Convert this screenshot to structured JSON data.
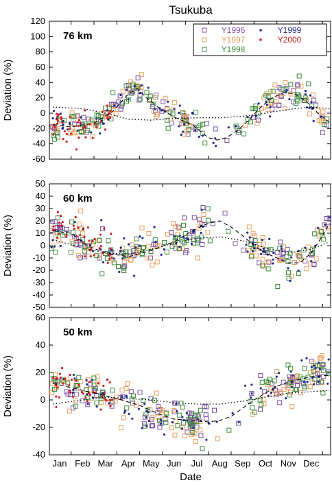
{
  "chart_data": {
    "type": "scatter",
    "title": "Tsukuba",
    "xlabel": "Date",
    "ylabel": "Deviation (%)",
    "months": [
      "Jan",
      "Feb",
      "Mar",
      "Apr",
      "May",
      "Jun",
      "Jul",
      "Aug",
      "Sep",
      "Oct",
      "Nov",
      "Dec"
    ],
    "legend": [
      {
        "name": "Y1996",
        "marker": "square",
        "color": "#7b4fa0"
      },
      {
        "name": "Y1997",
        "marker": "square",
        "color": "#e8a060"
      },
      {
        "name": "Y1998",
        "marker": "square",
        "color": "#3a8a3a"
      },
      {
        "name": "Y1999",
        "marker": "dot",
        "color": "#1f2a8a"
      },
      {
        "name": "Y2000",
        "marker": "dot",
        "color": "#cc1f1f"
      }
    ],
    "panels": [
      {
        "label": "76 km",
        "ylim": [
          -60,
          120
        ],
        "yticks": [
          -60,
          -40,
          -20,
          0,
          20,
          40,
          60,
          80,
          100,
          120
        ],
        "curves": {
          "fit_dashed": [
            [
              -0.3,
              -15
            ],
            [
              0.5,
              -18
            ],
            [
              1.5,
              -13
            ],
            [
              2.3,
              2
            ],
            [
              3.0,
              25
            ],
            [
              3.4,
              32
            ],
            [
              3.8,
              20
            ],
            [
              4.3,
              8
            ],
            [
              5.0,
              -5
            ],
            [
              5.8,
              -15
            ],
            [
              6.5,
              -32
            ],
            [
              6.9,
              -35
            ],
            [
              7.3,
              -32
            ],
            [
              7.8,
              -22
            ],
            [
              8.3,
              -8
            ],
            [
              8.8,
              8
            ],
            [
              9.3,
              20
            ],
            [
              9.8,
              27
            ],
            [
              10.3,
              25
            ],
            [
              10.8,
              15
            ],
            [
              11.3,
              0
            ],
            [
              11.8,
              -12
            ]
          ],
          "fit_dotted": [
            [
              -0.3,
              8
            ],
            [
              1.0,
              6
            ],
            [
              2.0,
              0
            ],
            [
              3.0,
              -8
            ],
            [
              4.0,
              -9
            ],
            [
              5.0,
              -7
            ],
            [
              6.0,
              -6
            ],
            [
              7.0,
              -6
            ],
            [
              8.0,
              -4
            ],
            [
              9.0,
              0
            ],
            [
              10.0,
              5
            ],
            [
              11.0,
              8
            ],
            [
              11.8,
              6
            ]
          ]
        }
      },
      {
        "label": "60 km",
        "ylim": [
          -50,
          50
        ],
        "yticks": [
          -50,
          -40,
          -30,
          -20,
          -10,
          0,
          10,
          20,
          30,
          40,
          50
        ],
        "curves": {
          "fit_dashed": [
            [
              -0.3,
              12
            ],
            [
              0.5,
              10
            ],
            [
              1.2,
              0
            ],
            [
              2.0,
              -6
            ],
            [
              3.0,
              -9
            ],
            [
              4.0,
              -4
            ],
            [
              5.0,
              3
            ],
            [
              5.8,
              12
            ],
            [
              6.5,
              18
            ],
            [
              7.0,
              20
            ],
            [
              7.5,
              15
            ],
            [
              8.0,
              8
            ],
            [
              8.5,
              0
            ],
            [
              9.0,
              -6
            ],
            [
              9.5,
              -10
            ],
            [
              10.0,
              -14
            ],
            [
              10.5,
              -14
            ],
            [
              11.0,
              -6
            ],
            [
              11.5,
              8
            ],
            [
              11.8,
              18
            ]
          ],
          "fit_dotted": [
            [
              -0.3,
              5
            ],
            [
              1.0,
              -2
            ],
            [
              2.0,
              -6
            ],
            [
              3.0,
              -7
            ],
            [
              4.0,
              -3
            ],
            [
              5.0,
              2
            ],
            [
              6.0,
              6
            ],
            [
              7.0,
              7
            ],
            [
              8.0,
              4
            ],
            [
              9.0,
              -2
            ],
            [
              10.0,
              -6
            ],
            [
              11.0,
              -3
            ],
            [
              11.8,
              3
            ]
          ]
        }
      },
      {
        "label": "50 km",
        "ylim": [
          -40,
          60
        ],
        "yticks": [
          -40,
          -20,
          0,
          20,
          40,
          60
        ],
        "curves": {
          "fit_dashed": [
            [
              -0.3,
              12
            ],
            [
              0.5,
              9
            ],
            [
              1.5,
              5
            ],
            [
              2.5,
              1
            ],
            [
              3.5,
              -4
            ],
            [
              4.3,
              -10
            ],
            [
              5.0,
              -14
            ],
            [
              5.8,
              -15
            ],
            [
              6.5,
              -16
            ],
            [
              7.0,
              -15
            ],
            [
              7.5,
              -12
            ],
            [
              8.0,
              -6
            ],
            [
              8.5,
              0
            ],
            [
              9.0,
              5
            ],
            [
              9.5,
              10
            ],
            [
              10.0,
              13
            ],
            [
              10.5,
              15
            ],
            [
              11.0,
              17
            ],
            [
              11.8,
              18
            ]
          ],
          "fit_dotted": [
            [
              -0.3,
              -3
            ],
            [
              1.0,
              0
            ],
            [
              2.0,
              2
            ],
            [
              3.0,
              1
            ],
            [
              4.0,
              0
            ],
            [
              5.0,
              -2
            ],
            [
              6.0,
              -3
            ],
            [
              7.0,
              -3
            ],
            [
              8.0,
              -1
            ],
            [
              9.0,
              2
            ],
            [
              10.0,
              5
            ],
            [
              11.0,
              6
            ],
            [
              11.8,
              7
            ]
          ]
        }
      }
    ]
  }
}
